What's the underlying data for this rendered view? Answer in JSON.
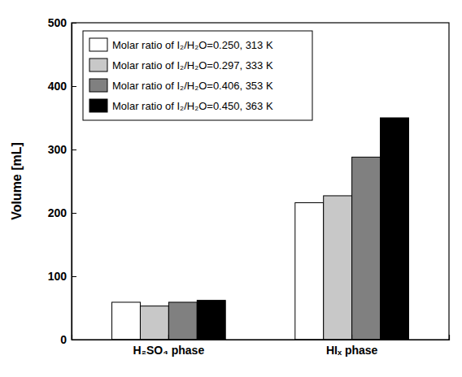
{
  "chart_data": {
    "type": "bar",
    "y_label": "Volume [mL]",
    "categories": [
      "H₂SO₄ phase",
      "HIₓ phase"
    ],
    "series": [
      {
        "name": "Molar ratio of I₂/H₂O=0.250, 313 K",
        "color": "#ffffff",
        "values": [
          59,
          216
        ]
      },
      {
        "name": "Molar ratio of I₂/H₂O=0.297, 333 K",
        "color": "#c8c8c8",
        "values": [
          53,
          227
        ]
      },
      {
        "name": "Molar ratio of I₂/H₂O=0.406, 353 K",
        "color": "#808080",
        "values": [
          59,
          288
        ]
      },
      {
        "name": "Molar ratio of I₂/H₂O=0.450, 363 K",
        "color": "#000000",
        "values": [
          62,
          350
        ]
      }
    ],
    "ylim": [
      0,
      500
    ],
    "yticks": [
      0,
      100,
      200,
      300,
      400,
      500
    ],
    "grid": false,
    "legend": "upper left"
  }
}
